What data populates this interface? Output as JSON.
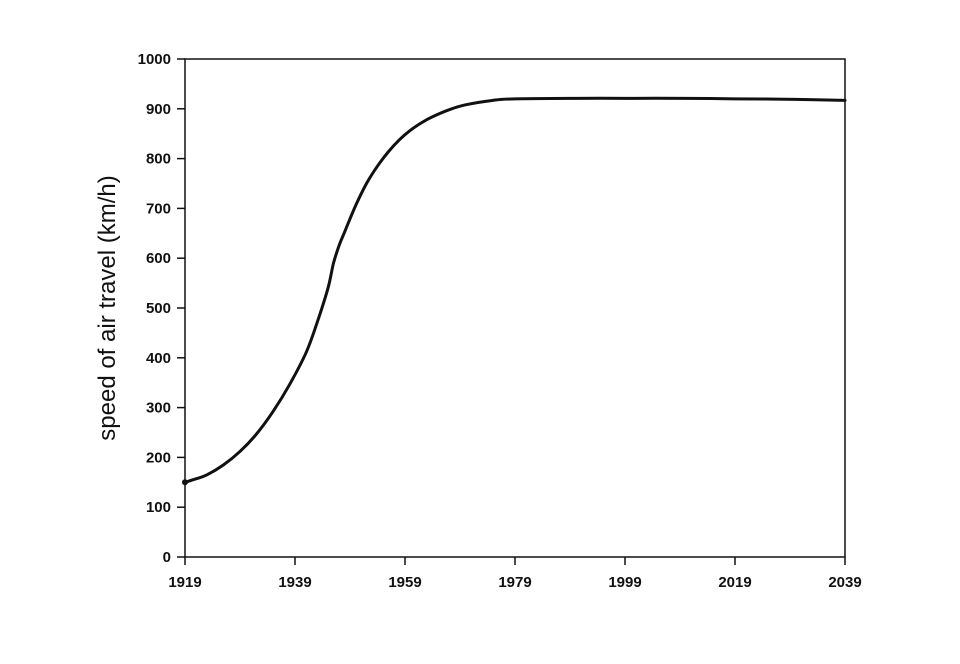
{
  "chart_data": {
    "type": "line",
    "title": "",
    "xlabel": "",
    "ylabel": "speed of air travel (km/h)",
    "xlim": [
      1919,
      2039
    ],
    "ylim": [
      0,
      1000
    ],
    "x_ticks": [
      "1919",
      "1939",
      "1959",
      "1979",
      "1999",
      "2019",
      "2039"
    ],
    "y_ticks": [
      "0",
      "100",
      "200",
      "300",
      "400",
      "500",
      "600",
      "700",
      "800",
      "900",
      "1000"
    ],
    "grid": false,
    "line_color": "#111111",
    "series": [
      {
        "x": [
          1919,
          1921,
          1923,
          1926,
          1929,
          1932,
          1935,
          1938,
          1941,
          1943,
          1945,
          1946,
          1947,
          1948,
          1950,
          1952,
          1954,
          1956,
          1958,
          1960,
          1962,
          1964,
          1967,
          1970,
          1975,
          1979,
          1990,
          1999,
          2010,
          2019,
          2030,
          2039
        ],
        "y": [
          150,
          157,
          165,
          185,
          212,
          247,
          292,
          346,
          410,
          470,
          540,
          590,
          625,
          652,
          705,
          750,
          785,
          814,
          838,
          857,
          872,
          884,
          898,
          908,
          917,
          920,
          921,
          921,
          921,
          920,
          919,
          917
        ]
      }
    ]
  }
}
